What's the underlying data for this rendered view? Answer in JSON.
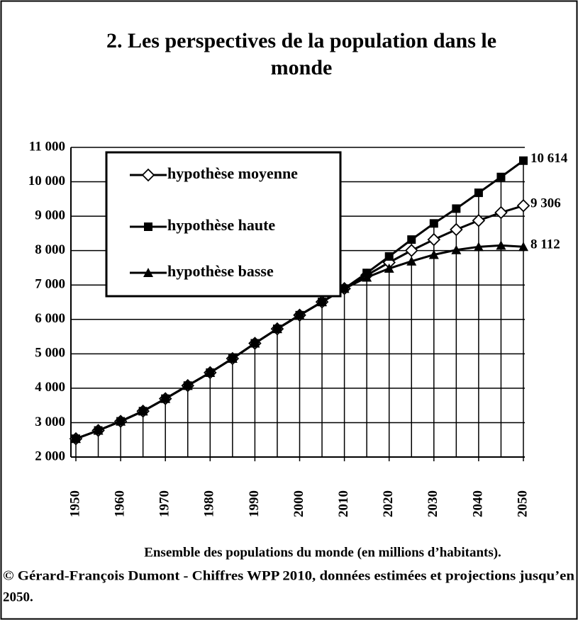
{
  "chart_data": {
    "type": "line",
    "title": "2. Les perspectives de la population dans le monde",
    "x": [
      1950,
      1955,
      1960,
      1965,
      1970,
      1975,
      1980,
      1985,
      1990,
      1995,
      2000,
      2005,
      2010,
      2015,
      2020,
      2025,
      2030,
      2035,
      2040,
      2045,
      2050
    ],
    "series": [
      {
        "name": "hypothèse moyenne",
        "color": "#000000",
        "marker": "diamond",
        "values": [
          2532,
          2772,
          3038,
          3333,
          3696,
          4076,
          4453,
          4863,
          5306,
          5726,
          6123,
          6507,
          6896,
          7284,
          7656,
          8003,
          8321,
          8612,
          8874,
          9106,
          9306
        ],
        "value_labels": [
          null,
          null,
          null,
          null,
          null,
          null,
          null,
          null,
          null,
          null,
          null,
          null,
          null,
          null,
          null,
          null,
          null,
          null,
          null,
          null,
          "9 306"
        ]
      },
      {
        "name": "hypothèse haute",
        "color": "#000000",
        "marker": "square",
        "values": [
          2532,
          2772,
          3038,
          3333,
          3696,
          4076,
          4453,
          4863,
          5306,
          5726,
          6123,
          6507,
          6896,
          7350,
          7830,
          8320,
          8790,
          9220,
          9680,
          10140,
          10614
        ],
        "value_labels": [
          null,
          null,
          null,
          null,
          null,
          null,
          null,
          null,
          null,
          null,
          null,
          null,
          null,
          null,
          null,
          null,
          null,
          null,
          null,
          null,
          "10 614"
        ]
      },
      {
        "name": "hypothèse basse",
        "color": "#000000",
        "marker": "triangle",
        "values": [
          2532,
          2772,
          3038,
          3333,
          3696,
          4076,
          4453,
          4863,
          5306,
          5726,
          6123,
          6507,
          6896,
          7220,
          7480,
          7690,
          7880,
          8020,
          8110,
          8150,
          8112
        ],
        "value_labels": [
          null,
          null,
          null,
          null,
          null,
          null,
          null,
          null,
          null,
          null,
          null,
          null,
          null,
          null,
          null,
          null,
          null,
          null,
          null,
          null,
          "8 112"
        ]
      }
    ],
    "xlim": [
      1950,
      2050
    ],
    "xticks": [
      1950,
      1960,
      1970,
      1980,
      1990,
      2000,
      2010,
      2020,
      2030,
      2040,
      2050
    ],
    "ylim": [
      2000,
      11000
    ],
    "yticks": [
      {
        "value": 2000,
        "label": "2 000"
      },
      {
        "value": 3000,
        "label": "3 000"
      },
      {
        "value": 4000,
        "label": "4 000"
      },
      {
        "value": 5000,
        "label": "5 000"
      },
      {
        "value": 6000,
        "label": "6 000"
      },
      {
        "value": 7000,
        "label": "7 000"
      },
      {
        "value": 8000,
        "label": "8 000"
      },
      {
        "value": 9000,
        "label": "9 000"
      },
      {
        "value": 10000,
        "label": "10 000"
      },
      {
        "value": 11000,
        "label": "11 000"
      }
    ],
    "grid": true,
    "legend": "upper left",
    "notes": [
      "Ensemble des populations du monde (en millions  d’habitants).",
      "© Gérard-François  Dumont - Chiffres WPP 2010, données estimées  et projections  jusqu’en",
      "2050."
    ]
  }
}
